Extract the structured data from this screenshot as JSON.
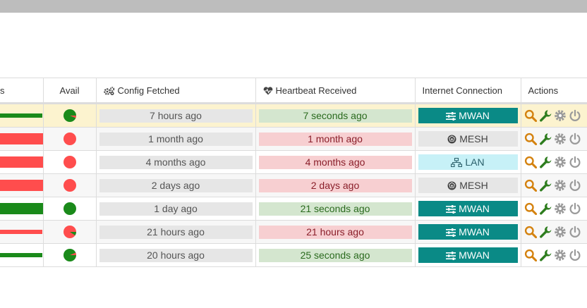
{
  "header": {
    "cols": [
      "s",
      "Avail",
      "Config Fetched",
      "Heartbeat Received",
      "Internet Connection",
      "Actions"
    ]
  },
  "rows": [
    {
      "status": "ok",
      "bar_color": "#1a8a1a",
      "bar_fraction": 0.98,
      "avail": "green-partial",
      "config": "7 hours ago",
      "heartbeat": "7 seconds ago",
      "hb_state": "ok",
      "conn": "MWAN",
      "conn_type": "mwan",
      "highlight": true
    },
    {
      "status": "bad",
      "bar_color": "#ff4d4d",
      "bar_fraction": 1.0,
      "avail": "red",
      "config": "1 month ago",
      "heartbeat": "1 month ago",
      "hb_state": "bad",
      "conn": "MESH",
      "conn_type": "mesh"
    },
    {
      "status": "bad",
      "bar_color": "#ff4d4d",
      "bar_fraction": 1.0,
      "avail": "red",
      "config": "4 months ago",
      "heartbeat": "4 months ago",
      "hb_state": "bad",
      "conn": "LAN",
      "conn_type": "lan"
    },
    {
      "status": "bad",
      "bar_color": "#ff4d4d",
      "bar_fraction": 1.0,
      "avail": "red",
      "config": "2 days ago",
      "heartbeat": "2 days ago",
      "hb_state": "bad",
      "conn": "MESH",
      "conn_type": "mesh"
    },
    {
      "status": "ok",
      "bar_color": "#1a8a1a",
      "bar_fraction": 1.0,
      "avail": "green",
      "config": "1 day ago",
      "heartbeat": "21 seconds ago",
      "hb_state": "ok",
      "conn": "MWAN",
      "conn_type": "mwan"
    },
    {
      "status": "bad",
      "bar_color": "#ff4d4d",
      "bar_fraction": 0.98,
      "avail": "red-partial",
      "config": "21 hours ago",
      "heartbeat": "21 hours ago",
      "hb_state": "bad",
      "conn": "MWAN",
      "conn_type": "mwan"
    },
    {
      "status": "ok",
      "bar_color": "#1a8a1a",
      "bar_fraction": 0.98,
      "avail": "green-partial-red",
      "config": "20 hours ago",
      "heartbeat": "25 seconds ago",
      "hb_state": "ok",
      "conn": "MWAN",
      "conn_type": "mwan"
    }
  ],
  "icons": {
    "config": "gears-icon",
    "heartbeat": "heartbeat-icon",
    "mwan": "sliders-icon",
    "mesh": "mesh-icon",
    "lan": "network-icon",
    "actions": [
      "search-icon",
      "wrench-icon",
      "gear-icon",
      "power-icon"
    ]
  },
  "colors": {
    "ok": "#1a8a1a",
    "bad": "#ff4d4d",
    "mwan": "#0a8a86",
    "lan": "#c7f1f7",
    "search": "#d4820f",
    "wrench": "#2e7d1e",
    "gear": "#9a9a9a",
    "power": "#9a9a9a"
  }
}
